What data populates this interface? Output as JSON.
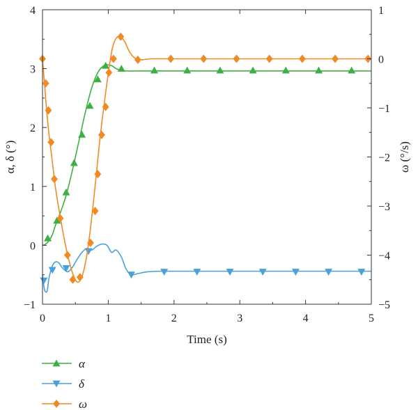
{
  "chart_data": {
    "type": "line",
    "xlabel": "Time (s)",
    "ylabel_left": "α, δ (°)",
    "ylabel_right": "ω (°/s)",
    "xlim": [
      0,
      5
    ],
    "ylim_left": [
      -1,
      4
    ],
    "ylim_right": [
      -5,
      1
    ],
    "x_ticks": [
      0,
      1,
      2,
      3,
      4,
      5
    ],
    "y_left_ticks": [
      -1,
      0,
      1,
      2,
      3,
      4
    ],
    "y_right_ticks": [
      -5,
      -4,
      -3,
      -2,
      -1,
      0,
      1
    ],
    "grid": false,
    "legend_position": "below-left",
    "series": [
      {
        "name": "α",
        "axis": "left",
        "color": "#3cb043",
        "marker": "triangle-up",
        "line_x": [
          0,
          0.05,
          0.1,
          0.15,
          0.2,
          0.28,
          0.36,
          0.45,
          0.55,
          0.65,
          0.75,
          0.85,
          0.95,
          1.05,
          1.12,
          1.2,
          1.3,
          1.45,
          1.6,
          2,
          3,
          4,
          5
        ],
        "line_y": [
          0,
          0.02,
          0.08,
          0.18,
          0.35,
          0.58,
          0.85,
          1.25,
          1.75,
          2.25,
          2.68,
          2.95,
          3.06,
          3.05,
          3.0,
          2.97,
          2.96,
          2.96,
          2.96,
          2.96,
          2.96,
          2.96,
          2.96
        ],
        "marker_x": [
          0.08,
          0.22,
          0.36,
          0.48,
          0.6,
          0.72,
          0.84,
          0.96,
          1.2,
          1.7,
          2.2,
          2.7,
          3.2,
          3.7,
          4.2,
          4.7
        ],
        "marker_y": [
          0.12,
          0.42,
          0.9,
          1.4,
          1.88,
          2.37,
          2.82,
          3.05,
          3.0,
          2.97,
          2.97,
          2.97,
          2.97,
          2.97,
          2.97,
          2.97
        ]
      },
      {
        "name": "δ",
        "axis": "left",
        "color": "#4aa0d8",
        "marker": "triangle-down",
        "line_x": [
          0,
          0.03,
          0.07,
          0.1,
          0.15,
          0.2,
          0.25,
          0.3,
          0.38,
          0.45,
          0.52,
          0.6,
          0.68,
          0.75,
          0.82,
          0.9,
          0.98,
          1.05,
          1.12,
          1.2,
          1.27,
          1.35,
          1.45,
          1.6,
          1.8,
          2,
          3,
          4,
          5
        ],
        "line_y": [
          -0.5,
          -0.75,
          -0.78,
          -0.55,
          -0.35,
          -0.28,
          -0.3,
          -0.38,
          -0.45,
          -0.38,
          -0.25,
          -0.12,
          -0.05,
          -0.08,
          -0.02,
          0.02,
          0.0,
          -0.12,
          -0.08,
          -0.2,
          -0.4,
          -0.5,
          -0.48,
          -0.45,
          -0.44,
          -0.44,
          -0.44,
          -0.44,
          -0.44
        ],
        "marker_x": [
          0.02,
          0.15,
          0.36,
          0.7,
          1.35,
          1.85,
          2.35,
          2.85,
          3.35,
          3.85,
          4.35,
          4.85
        ],
        "marker_y": [
          -0.6,
          -0.42,
          -0.39,
          -0.1,
          -0.5,
          -0.45,
          -0.45,
          -0.45,
          -0.45,
          -0.45,
          -0.45,
          -0.45
        ]
      },
      {
        "name": "ω",
        "axis": "right",
        "color": "#f08a24",
        "marker": "diamond",
        "line_x": [
          0,
          0.03,
          0.06,
          0.1,
          0.15,
          0.2,
          0.28,
          0.35,
          0.42,
          0.48,
          0.53,
          0.58,
          0.63,
          0.68,
          0.73,
          0.78,
          0.83,
          0.88,
          0.94,
          1.0,
          1.06,
          1.12,
          1.18,
          1.25,
          1.32,
          1.4,
          1.5,
          1.65,
          2,
          3,
          4,
          5
        ],
        "line_y": [
          0,
          -0.5,
          -1.0,
          -1.55,
          -2.1,
          -2.65,
          -3.3,
          -3.8,
          -4.2,
          -4.45,
          -4.55,
          -4.5,
          -4.3,
          -3.95,
          -3.45,
          -2.85,
          -2.2,
          -1.55,
          -0.9,
          -0.3,
          0.2,
          0.42,
          0.45,
          0.35,
          0.15,
          0.02,
          -0.02,
          0.0,
          0.0,
          0.0,
          0.0,
          0.0
        ],
        "marker_x": [
          0.0,
          0.05,
          0.09,
          0.13,
          0.18,
          0.27,
          0.38,
          0.46,
          0.57,
          0.73,
          0.8,
          0.84,
          0.9,
          0.96,
          1.01,
          1.08,
          1.19,
          1.45,
          1.95,
          2.45,
          2.95,
          3.45,
          3.95,
          4.45,
          4.95
        ],
        "marker_y": [
          0.0,
          -0.5,
          -1.05,
          -1.7,
          -2.45,
          -3.25,
          -4.0,
          -4.5,
          -4.45,
          -3.75,
          -3.1,
          -2.35,
          -1.55,
          -0.98,
          -0.28,
          0.0,
          0.45,
          -0.02,
          0.0,
          0.0,
          0.0,
          0.0,
          0.0,
          0.0,
          0.0
        ]
      }
    ]
  }
}
